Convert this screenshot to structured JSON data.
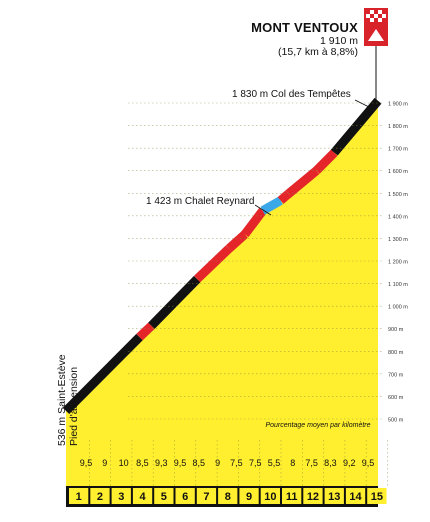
{
  "summit": {
    "name": "MONT VENTOUX",
    "altitude": "1 910 m",
    "details": "(15,7 km à 8,8%)"
  },
  "waypoints": {
    "col_tempetes": "1 830 m Col des Tempêtes",
    "chalet_reynard": "1 423 m Chalet Reynard"
  },
  "start": {
    "label": "536 m Saint-Estève",
    "sublabel": "Pied d'ascension"
  },
  "colors": {
    "fill": "#ffef2e",
    "black": "#111111",
    "red": "#e4262b",
    "blue": "#3aa8e8"
  },
  "chart_data": {
    "type": "area",
    "title": "",
    "xlabel": "",
    "ylabel": "Pourcentage moyen par kilomètre",
    "ylim": [
      500,
      1900
    ],
    "y_ticks": [
      "500 m",
      "600 m",
      "700 m",
      "800 m",
      "900 m",
      "1 000 m",
      "1 100 m",
      "1 200 m",
      "1 300 m",
      "1 400 m",
      "1 500 m",
      "1 600 m",
      "1 700 m",
      "1 800 m",
      "1 900 m"
    ],
    "km": [
      "1",
      "2",
      "3",
      "4",
      "5",
      "6",
      "7",
      "8",
      "9",
      "10",
      "11",
      "12",
      "13",
      "14",
      "15"
    ],
    "gradient_labels": [
      "9,5",
      "9",
      "10",
      "8,5",
      "9,3",
      "9,5",
      "8,5",
      "9",
      "7,5",
      "7,5",
      "5,5",
      "8",
      "7,5",
      "8,3",
      "9,2",
      "9,5"
    ],
    "segments": [
      {
        "km_start": 0,
        "km_end": 3.7,
        "alt_start": 536,
        "alt_end": 863,
        "color": "black"
      },
      {
        "km_start": 3.7,
        "km_end": 4.3,
        "alt_start": 863,
        "alt_end": 913,
        "color": "red"
      },
      {
        "km_start": 4.3,
        "km_end": 6.6,
        "alt_start": 913,
        "alt_end": 1120,
        "color": "black"
      },
      {
        "km_start": 6.6,
        "km_end": 8.2,
        "alt_start": 1120,
        "alt_end": 1255,
        "color": "red"
      },
      {
        "km_start": 8.2,
        "km_end": 9.0,
        "alt_start": 1255,
        "alt_end": 1318,
        "color": "red"
      },
      {
        "km_start": 9.0,
        "km_end": 9.9,
        "alt_start": 1318,
        "alt_end": 1423,
        "color": "red"
      },
      {
        "km_start": 9.9,
        "km_end": 10.8,
        "alt_start": 1423,
        "alt_end": 1468,
        "color": "blue"
      },
      {
        "km_start": 10.8,
        "km_end": 11.2,
        "alt_start": 1468,
        "alt_end": 1498,
        "color": "red"
      },
      {
        "km_start": 11.2,
        "km_end": 12.6,
        "alt_start": 1498,
        "alt_end": 1600,
        "color": "red"
      },
      {
        "km_start": 12.6,
        "km_end": 13.5,
        "alt_start": 1600,
        "alt_end": 1680,
        "color": "red"
      },
      {
        "km_start": 13.5,
        "km_end": 15.7,
        "alt_start": 1680,
        "alt_end": 1910,
        "color": "black"
      }
    ]
  }
}
